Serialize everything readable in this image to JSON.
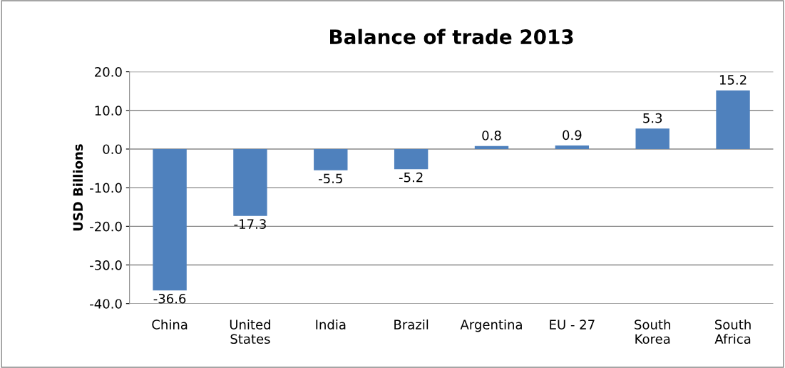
{
  "chart_data": {
    "type": "bar",
    "title": "Balance of trade 2013",
    "ylabel": "USD Billions",
    "categories": [
      "China",
      "United\nStates",
      "India",
      "Brazil",
      "Argentina",
      "EU - 27",
      "South\nKorea",
      "South\nAfrica"
    ],
    "values": [
      -36.6,
      -17.3,
      -5.5,
      -5.2,
      0.8,
      0.9,
      5.3,
      15.2
    ],
    "color": "#4f81bd",
    "ylim": [
      -40,
      20
    ],
    "yticks": [
      {
        "value": -40,
        "label": "-40.0"
      },
      {
        "value": -30,
        "label": "-30.0"
      },
      {
        "value": -20,
        "label": "-20.0"
      },
      {
        "value": -10,
        "label": "-10.0"
      },
      {
        "value": 0,
        "label": "0.0"
      },
      {
        "value": 10,
        "label": "10.0"
      },
      {
        "value": 20,
        "label": "20.0"
      }
    ],
    "grid": "y",
    "data_labels": true
  }
}
